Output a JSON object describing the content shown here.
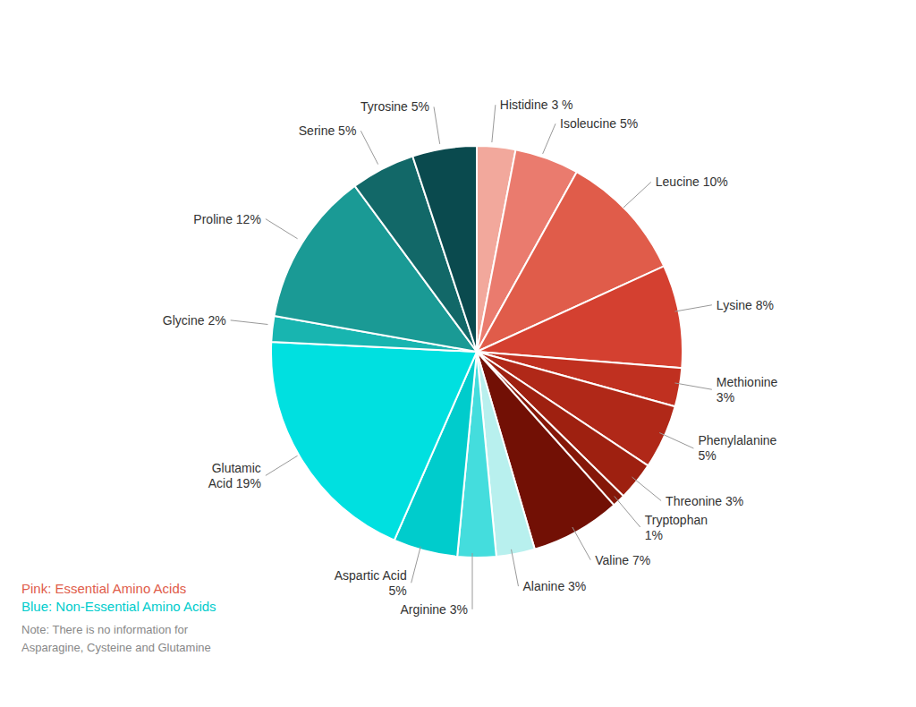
{
  "chart_data": {
    "type": "pie",
    "categories": [
      "Histidine 3 %",
      "Isoleucine 5%",
      "Leucine 10%",
      "Lysine 8%",
      "Methionine\n3%",
      "Phenylalanine\n5%",
      "Threonine 3%",
      "Tryptophan\n1%",
      "Valine 7%",
      "Alanine 3%",
      "Arginine 3%",
      "Aspartic Acid\n5%",
      "Glutamic\nAcid 19%",
      "Glycine 2%",
      "Proline 12%",
      "Serine 5%",
      "Tyrosine 5%"
    ],
    "values": [
      3,
      5,
      10,
      8,
      3,
      5,
      3,
      1,
      7,
      3,
      3,
      5,
      19,
      2,
      12,
      5,
      5
    ],
    "colors": [
      "#F2A89C",
      "#EA7B6E",
      "#E05C4A",
      "#D44030",
      "#C03020",
      "#B02818",
      "#9E2010",
      "#851808",
      "#721005",
      "#B8F0EE",
      "#44DDDD",
      "#00CCCC",
      "#00E0E0",
      "#18B5B0",
      "#1A9A95",
      "#126868",
      "#0A4A4E"
    ],
    "annotations": [
      {
        "text": "Pink: Essential Amino Acids",
        "color": "#E05C4A"
      },
      {
        "text": "Blue: Non-Essential Amino Acids",
        "color": "#00CCCC"
      },
      {
        "text": "Note: There is no information for",
        "color": "#888888"
      },
      {
        "text": "Asparagine, Cysteine and Glutamine",
        "color": "#888888"
      }
    ]
  }
}
